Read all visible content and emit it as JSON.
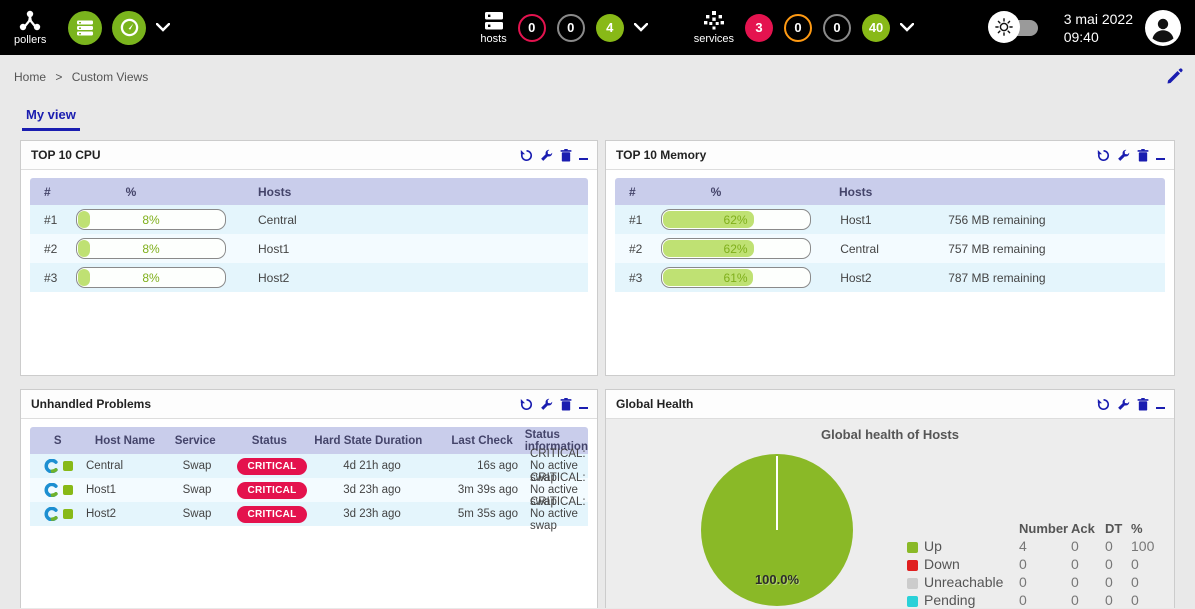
{
  "header": {
    "pollers": {
      "label": "pollers"
    },
    "hosts": {
      "label": "hosts",
      "counters": [
        {
          "value": "0",
          "style": "red-outline"
        },
        {
          "value": "0",
          "style": "gray-outline"
        },
        {
          "value": "4",
          "style": "green-filled"
        }
      ]
    },
    "services": {
      "label": "services",
      "counters": [
        {
          "value": "3",
          "style": "red-filled"
        },
        {
          "value": "0",
          "style": "orange-outline"
        },
        {
          "value": "0",
          "style": "gray-outline"
        },
        {
          "value": "40",
          "style": "green-filled"
        }
      ]
    },
    "clock": {
      "date": "3 mai 2022",
      "time": "09:40"
    }
  },
  "breadcrumb": {
    "home": "Home",
    "separator": ">",
    "current": "Custom Views"
  },
  "tabs": {
    "my_view": "My view"
  },
  "panels": {
    "cpu": {
      "title": "TOP 10 CPU",
      "columns": {
        "rank": "#",
        "percent": "%",
        "hosts": "Hosts"
      },
      "rows": [
        {
          "rank": "#1",
          "percent": 8,
          "percent_label": "8%",
          "host": "Central"
        },
        {
          "rank": "#2",
          "percent": 8,
          "percent_label": "8%",
          "host": "Host1"
        },
        {
          "rank": "#3",
          "percent": 8,
          "percent_label": "8%",
          "host": "Host2"
        }
      ]
    },
    "memory": {
      "title": "TOP 10 Memory",
      "columns": {
        "rank": "#",
        "percent": "%",
        "hosts": "Hosts"
      },
      "rows": [
        {
          "rank": "#1",
          "percent": 62,
          "percent_label": "62%",
          "host": "Host1",
          "remaining": "756 MB remaining"
        },
        {
          "rank": "#2",
          "percent": 62,
          "percent_label": "62%",
          "host": "Central",
          "remaining": "757 MB remaining"
        },
        {
          "rank": "#3",
          "percent": 61,
          "percent_label": "61%",
          "host": "Host2",
          "remaining": "787 MB remaining"
        }
      ]
    },
    "problems": {
      "title": "Unhandled Problems",
      "columns": {
        "s": "S",
        "host": "Host Name",
        "service": "Service",
        "status": "Status",
        "duration": "Hard State Duration",
        "last_check": "Last Check",
        "info": "Status information"
      },
      "rows": [
        {
          "host": "Central",
          "service": "Swap",
          "status": "CRITICAL",
          "duration": "4d 21h ago",
          "last_check": "16s ago",
          "info": "CRITICAL: No active swap"
        },
        {
          "host": "Host1",
          "service": "Swap",
          "status": "CRITICAL",
          "duration": "3d 23h ago",
          "last_check": "3m 39s ago",
          "info": "CRITICAL: No active swap"
        },
        {
          "host": "Host2",
          "service": "Swap",
          "status": "CRITICAL",
          "duration": "3d 23h ago",
          "last_check": "5m 35s ago",
          "info": "CRITICAL: No active swap"
        }
      ]
    },
    "health": {
      "title": "Global Health",
      "chart_title": "Global health of Hosts",
      "pie_label": "100.0%",
      "legend_headers": {
        "number": "Number",
        "ack": "Ack",
        "dt": "DT",
        "pct": "%"
      },
      "legend_rows": [
        {
          "label": "Up",
          "color": "#8ab927",
          "number": "4",
          "ack": "0",
          "dt": "0",
          "pct": "100"
        },
        {
          "label": "Down",
          "color": "#e01f1f",
          "number": "0",
          "ack": "0",
          "dt": "0",
          "pct": "0"
        },
        {
          "label": "Unreachable",
          "color": "#cccccc",
          "number": "0",
          "ack": "0",
          "dt": "0",
          "pct": "0"
        },
        {
          "label": "Pending",
          "color": "#29d1d8",
          "number": "0",
          "ack": "0",
          "dt": "0",
          "pct": "0"
        }
      ]
    }
  },
  "chart_data": {
    "type": "pie",
    "title": "Global health of Hosts",
    "categories": [
      "Up",
      "Down",
      "Unreachable",
      "Pending"
    ],
    "values": [
      100.0,
      0,
      0,
      0
    ],
    "counts": [
      4,
      0,
      0,
      0
    ],
    "colors": [
      "#8ab927",
      "#e01f1f",
      "#cccccc",
      "#29d1d8"
    ],
    "data_label": "100.0%",
    "legend_position": "right"
  },
  "colors": {
    "brand_green": "#88b917",
    "critical_red": "#e4124d",
    "accent_navy": "#1a1db0",
    "table_header": "#c9cdeb",
    "row_odd": "#e4f5fc",
    "row_even": "#f3fbff"
  }
}
